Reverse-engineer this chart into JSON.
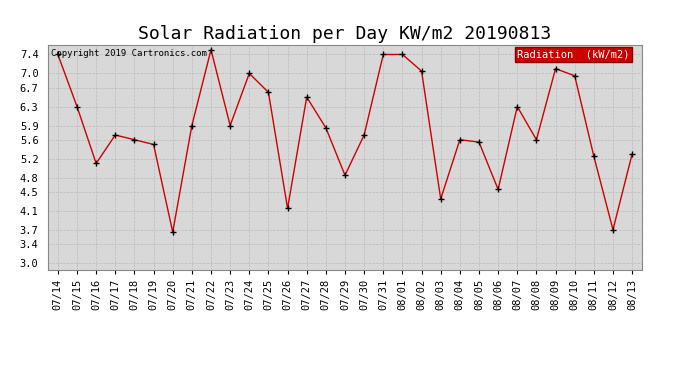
{
  "title": "Solar Radiation per Day KW/m2 20190813",
  "copyright": "Copyright 2019 Cartronics.com",
  "legend_label": "Radiation  (kW/m2)",
  "dates": [
    "07/14",
    "07/15",
    "07/16",
    "07/17",
    "07/18",
    "07/19",
    "07/20",
    "07/21",
    "07/22",
    "07/23",
    "07/24",
    "07/25",
    "07/26",
    "07/27",
    "07/28",
    "07/29",
    "07/30",
    "07/31",
    "08/01",
    "08/02",
    "08/03",
    "08/04",
    "08/05",
    "08/06",
    "08/07",
    "08/08",
    "08/09",
    "08/10",
    "08/11",
    "08/12",
    "08/13"
  ],
  "values": [
    7.4,
    6.3,
    5.1,
    5.7,
    5.6,
    5.5,
    3.65,
    5.9,
    7.5,
    5.9,
    7.0,
    6.6,
    4.15,
    6.5,
    5.85,
    4.85,
    5.7,
    7.4,
    7.4,
    7.05,
    4.35,
    5.6,
    5.55,
    4.55,
    6.3,
    5.6,
    7.1,
    6.95,
    5.25,
    3.7,
    5.3
  ],
  "line_color": "#cc0000",
  "marker_color": "#000000",
  "bg_color": "#ffffff",
  "grid_color": "#bbbbbb",
  "plot_bg_color": "#d8d8d8",
  "legend_bg": "#cc0000",
  "legend_text_color": "#ffffff",
  "yticks": [
    3.0,
    3.4,
    3.7,
    4.1,
    4.5,
    4.8,
    5.2,
    5.6,
    5.9,
    6.3,
    6.7,
    7.0,
    7.4
  ],
  "ylim": [
    2.85,
    7.6
  ],
  "title_fontsize": 13,
  "tick_fontsize": 7.5,
  "copyright_fontsize": 6.5
}
